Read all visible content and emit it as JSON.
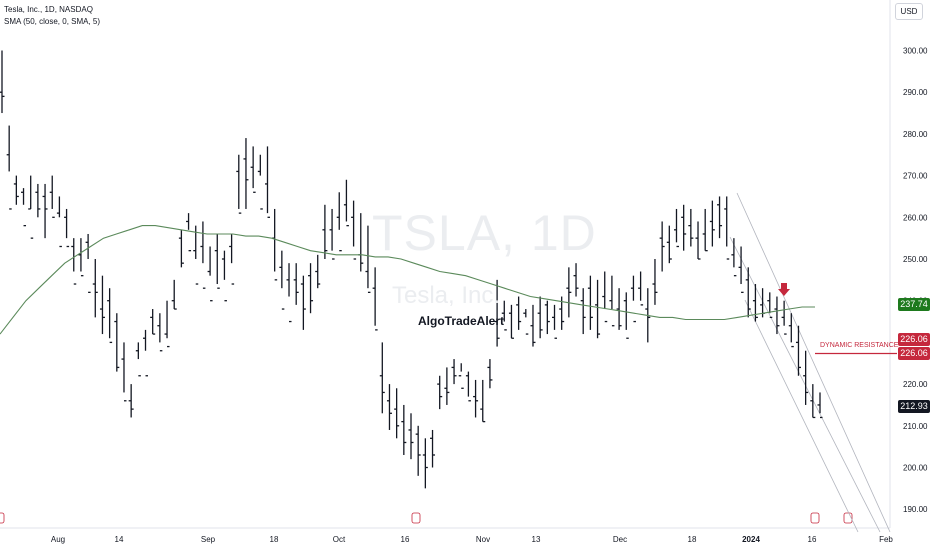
{
  "header": {
    "symbol_line": "Tesla, Inc., 1D, NASDAQ",
    "indicator_line": "SMA (50, close, 0, SMA, 5)"
  },
  "currency_button": "USD",
  "watermark": {
    "ticker": "TSLA, 1D",
    "name": "Tesla, Inc."
  },
  "annotation": "AlgoTradeAlert",
  "resistance": {
    "label": "DYNAMIC RESISTANCE",
    "price": "226.06"
  },
  "colors": {
    "bars": "#131722",
    "sma": "#5b8a5b",
    "resistance": "#c5283d",
    "channel": "#b2b5be",
    "last_price_bg": "#131722",
    "sma_price_bg": "#1e7a1e"
  },
  "chart_data": {
    "type": "ohlc-bar",
    "title": "Tesla, Inc., 1D, NASDAQ",
    "y_axis": {
      "ticks": [
        190,
        200,
        210,
        220,
        230,
        240,
        250,
        260,
        270,
        280,
        290,
        300
      ],
      "range": [
        186,
        311
      ]
    },
    "x_axis": {
      "ticks": [
        "Aug",
        "14",
        "Sep",
        "18",
        "Oct",
        "16",
        "Nov",
        "13",
        "Dec",
        "18",
        "2024",
        "16",
        "Feb"
      ]
    },
    "price_labels": {
      "sma": "237.74",
      "resistance_top": "226.06",
      "resistance_bottom": "226.06",
      "last": "212.93"
    },
    "series": [
      {
        "name": "SMA (50, close, 0, SMA, 5)",
        "values": [
          232,
          236,
          240,
          243,
          246,
          249,
          251,
          253,
          255,
          256,
          257,
          258,
          258,
          257.5,
          257,
          256.5,
          256,
          256,
          256,
          255.5,
          255.5,
          255,
          254,
          253,
          252,
          251.5,
          251,
          251,
          251,
          250.5,
          250.5,
          250,
          249,
          248,
          247,
          246.5,
          246,
          245,
          244,
          243,
          242,
          241,
          240.5,
          240,
          239.5,
          239,
          238.5,
          238,
          237.5,
          237,
          236.5,
          236,
          236,
          235.5,
          235.5,
          235.5,
          235.5,
          236,
          236.5,
          237,
          237.5,
          238,
          238.5,
          238.5
        ]
      }
    ],
    "bars": [
      [
        285,
        300,
        290,
        289
      ],
      [
        271,
        282,
        275,
        262
      ],
      [
        263,
        270,
        268,
        265
      ],
      [
        263,
        267,
        266,
        258
      ],
      [
        262,
        270,
        262,
        255
      ],
      [
        260,
        268,
        266,
        262
      ],
      [
        255,
        268,
        265,
        262
      ],
      [
        262,
        270,
        266,
        260
      ],
      [
        260,
        265,
        261,
        253
      ],
      [
        255,
        262,
        260,
        253
      ],
      [
        247,
        255,
        253,
        244
      ],
      [
        247,
        255,
        251,
        246
      ],
      [
        250,
        256,
        254,
        242
      ],
      [
        236,
        250,
        244,
        242
      ],
      [
        232,
        246,
        238,
        236
      ],
      [
        231,
        243,
        240,
        230
      ],
      [
        223,
        237,
        235,
        224
      ],
      [
        218,
        230,
        226,
        216
      ],
      [
        212,
        220,
        216,
        214
      ],
      [
        230,
        226,
        228,
        222
      ],
      [
        228,
        233,
        231,
        222
      ],
      [
        232,
        238,
        236,
        232
      ],
      [
        230,
        237,
        234,
        228
      ],
      [
        231,
        240,
        232,
        229
      ],
      [
        238,
        245,
        240,
        238
      ],
      [
        248,
        257,
        255,
        249
      ],
      [
        257,
        261,
        259,
        252
      ],
      [
        250,
        258,
        252,
        244
      ],
      [
        249,
        259,
        253,
        243
      ],
      [
        246,
        253,
        247,
        240
      ],
      [
        244,
        256,
        252,
        243
      ],
      [
        245,
        252,
        250,
        240
      ],
      [
        249,
        256,
        253,
        244
      ],
      [
        262,
        275,
        271,
        261
      ],
      [
        262,
        279,
        274,
        269
      ],
      [
        267,
        277,
        272,
        266
      ],
      [
        270,
        275,
        271,
        262
      ],
      [
        261,
        277,
        268,
        260
      ],
      [
        247,
        262,
        255,
        245
      ],
      [
        243,
        252,
        248,
        238
      ],
      [
        241,
        249,
        245,
        235
      ],
      [
        239,
        249,
        245,
        242
      ],
      [
        233,
        246,
        244,
        238
      ],
      [
        237,
        249,
        246,
        240
      ],
      [
        243,
        251,
        247,
        244
      ],
      [
        250,
        263,
        257,
        252
      ],
      [
        252,
        262,
        257,
        250
      ],
      [
        257,
        266,
        260,
        252
      ],
      [
        259,
        269,
        263,
        258
      ],
      [
        253,
        264,
        260,
        250
      ],
      [
        247,
        261,
        251,
        249
      ],
      [
        243,
        258,
        247,
        242
      ],
      [
        234,
        248,
        243,
        233
      ],
      [
        213,
        230,
        222,
        218
      ],
      [
        209,
        220,
        216,
        213
      ],
      [
        207,
        219,
        214,
        210
      ],
      [
        203,
        215,
        211,
        206
      ],
      [
        202,
        213,
        209,
        206
      ],
      [
        198,
        210,
        208,
        203
      ],
      [
        195,
        207,
        203,
        200
      ],
      [
        200,
        209,
        207,
        203
      ],
      [
        214,
        222,
        220,
        217
      ],
      [
        215,
        224,
        219,
        218
      ],
      [
        220,
        226,
        224,
        222
      ],
      [
        223,
        225,
        222,
        219
      ],
      [
        217,
        223,
        222,
        216
      ],
      [
        212,
        221,
        217,
        216
      ],
      [
        211,
        221,
        214,
        211
      ],
      [
        219,
        226,
        224,
        221
      ],
      [
        229,
        245,
        235,
        231
      ],
      [
        235,
        240,
        237,
        233
      ],
      [
        231,
        239,
        237,
        231
      ],
      [
        233,
        241,
        239,
        235
      ],
      [
        236,
        238,
        237,
        232
      ],
      [
        229,
        239,
        234,
        230
      ],
      [
        231,
        241,
        237,
        233
      ],
      [
        232,
        240,
        239,
        235
      ],
      [
        233,
        239,
        236,
        231
      ],
      [
        233,
        241,
        238,
        235
      ],
      [
        236,
        248,
        243,
        242
      ],
      [
        241,
        249,
        246,
        243
      ],
      [
        232,
        243,
        240,
        236
      ],
      [
        233,
        246,
        243,
        236
      ],
      [
        231,
        245,
        239,
        232
      ],
      [
        238,
        247,
        241,
        235
      ],
      [
        238,
        246,
        240,
        234
      ],
      [
        233,
        243,
        238,
        234
      ],
      [
        233,
        242,
        240,
        231
      ],
      [
        240,
        246,
        243,
        235
      ],
      [
        240,
        247,
        243,
        239
      ],
      [
        230,
        243,
        238,
        236
      ],
      [
        239,
        250,
        244,
        242
      ],
      [
        247,
        259,
        255,
        253
      ],
      [
        249,
        258,
        254,
        250
      ],
      [
        254,
        262,
        257,
        253
      ],
      [
        252,
        263,
        260,
        256
      ],
      [
        253,
        262,
        258,
        255
      ],
      [
        250,
        259,
        255,
        250
      ],
      [
        252,
        262,
        256,
        252
      ],
      [
        253,
        264,
        259,
        257
      ],
      [
        255,
        265,
        263,
        258
      ],
      [
        253,
        265,
        262,
        250
      ],
      [
        248,
        255,
        251,
        246
      ],
      [
        244,
        253,
        248,
        242
      ],
      [
        236,
        248,
        245,
        238
      ],
      [
        235,
        244,
        240,
        236
      ],
      [
        236,
        243,
        239,
        237
      ],
      [
        237,
        242,
        240,
        236
      ],
      [
        232,
        241,
        238,
        234
      ],
      [
        234,
        240,
        236,
        232
      ],
      [
        230,
        237,
        234,
        229
      ],
      [
        222,
        234,
        230,
        224
      ],
      [
        215,
        228,
        222,
        218
      ],
      [
        212,
        220,
        216,
        212
      ],
      [
        213,
        218,
        215,
        212
      ]
    ],
    "legend": "none",
    "grid": false
  }
}
